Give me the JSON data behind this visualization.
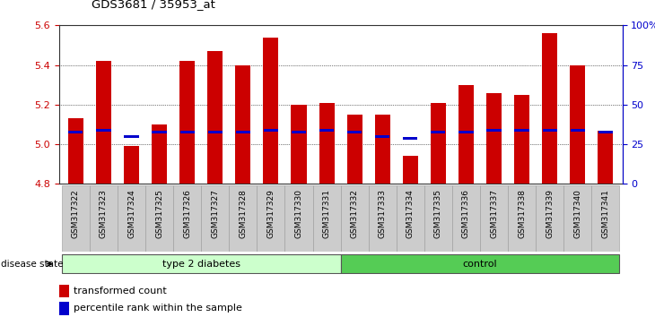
{
  "title": "GDS3681 / 35953_at",
  "samples": [
    "GSM317322",
    "GSM317323",
    "GSM317324",
    "GSM317325",
    "GSM317326",
    "GSM317327",
    "GSM317328",
    "GSM317329",
    "GSM317330",
    "GSM317331",
    "GSM317332",
    "GSM317333",
    "GSM317334",
    "GSM317335",
    "GSM317336",
    "GSM317337",
    "GSM317338",
    "GSM317339",
    "GSM317340",
    "GSM317341"
  ],
  "transformed_count": [
    5.13,
    5.42,
    4.99,
    5.1,
    5.42,
    5.47,
    5.4,
    5.54,
    5.2,
    5.21,
    5.15,
    5.15,
    4.94,
    5.21,
    5.3,
    5.26,
    5.25,
    5.56,
    5.4,
    5.07
  ],
  "percentile_rank": [
    5.06,
    5.07,
    5.04,
    5.06,
    5.06,
    5.06,
    5.06,
    5.07,
    5.06,
    5.07,
    5.06,
    5.04,
    5.03,
    5.06,
    5.06,
    5.07,
    5.07,
    5.07,
    5.07,
    5.06
  ],
  "base": 4.8,
  "ylim_min": 4.8,
  "ylim_max": 5.6,
  "bar_color": "#cc0000",
  "percentile_color": "#0000cc",
  "groups": [
    {
      "label": "type 2 diabetes",
      "start": 0,
      "end": 10,
      "color": "#ccffcc"
    },
    {
      "label": "control",
      "start": 10,
      "end": 20,
      "color": "#55cc55"
    }
  ],
  "disease_state_label": "disease state",
  "legend": [
    {
      "label": "transformed count",
      "color": "#cc0000"
    },
    {
      "label": "percentile rank within the sample",
      "color": "#0000cc"
    }
  ],
  "left_axis_color": "#cc0000",
  "right_axis_color": "#0000cc",
  "right_yticks": [
    0,
    25,
    50,
    75,
    100
  ],
  "right_ytick_labels": [
    "0",
    "25",
    "50",
    "75",
    "100%"
  ],
  "left_yticks": [
    4.8,
    5.0,
    5.2,
    5.4,
    5.6
  ],
  "grid_yticks": [
    5.0,
    5.2,
    5.4
  ],
  "background_color": "#ffffff",
  "plot_bg_color": "#ffffff",
  "tick_label_bg": "#cccccc"
}
